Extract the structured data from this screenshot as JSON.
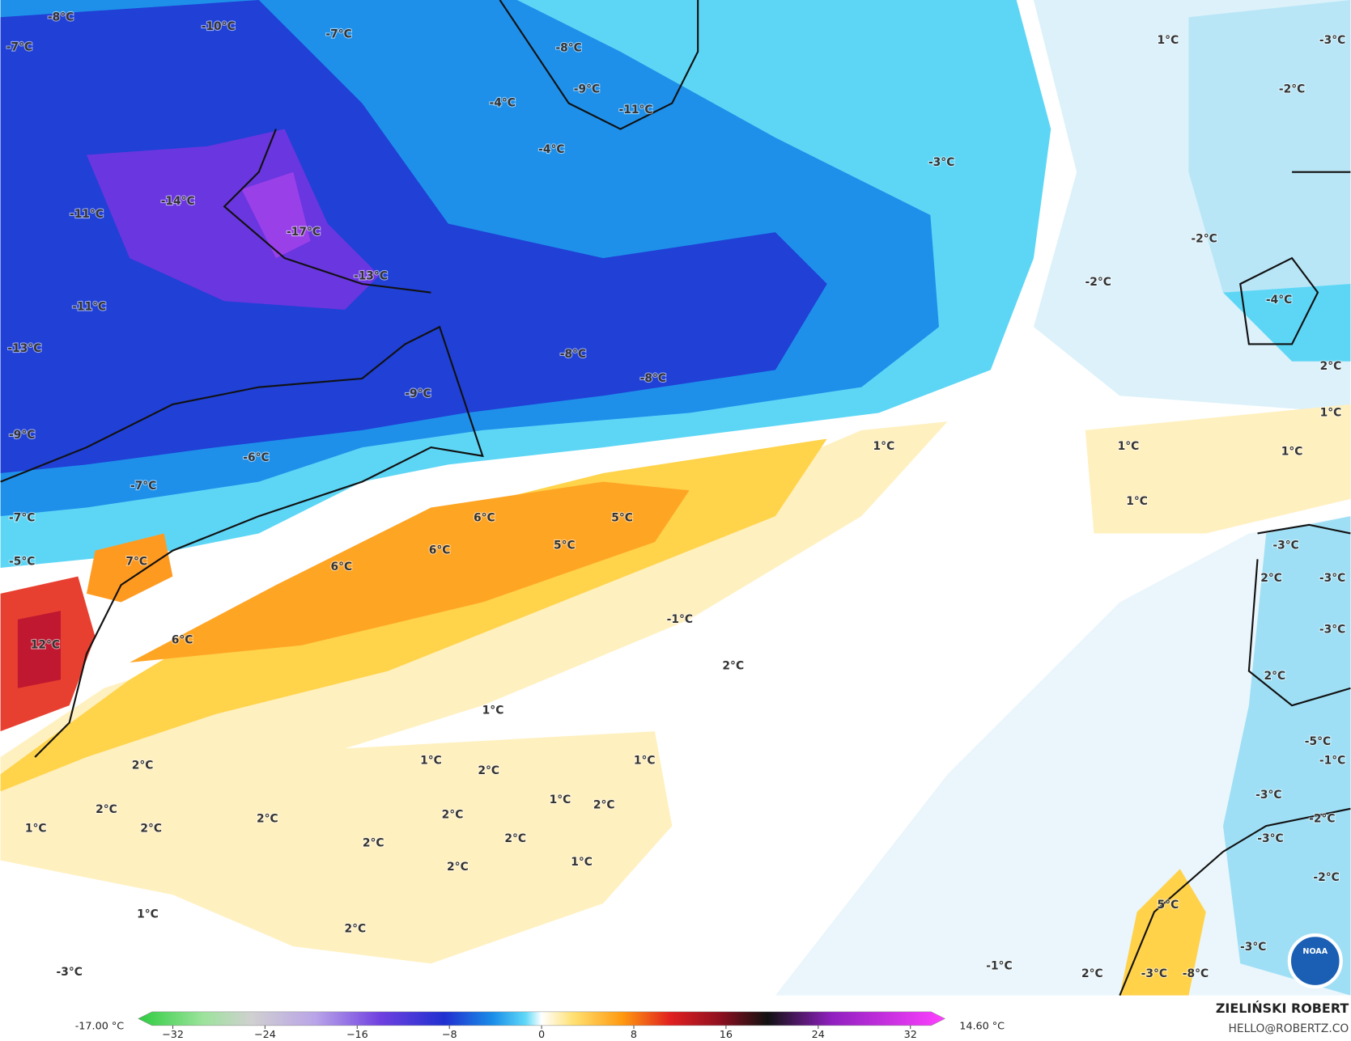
{
  "map": {
    "labels": [
      "-8°C",
      "-10°C",
      "-7°C",
      "-7°C",
      "-8°C",
      "-9°C",
      "-11°C",
      "-4°C",
      "-4°C",
      "-3°C",
      "1°C",
      "-3°C",
      "-2°C",
      "-14°C",
      "-11°C",
      "-17°C",
      "-2°C",
      "-13°C",
      "-2°C",
      "-11°C",
      "-4°C",
      "-13°C",
      "-8°C",
      "-8°C",
      "2°C",
      "-9°C",
      "1°C",
      "-9°C",
      "-6°C",
      "1°C",
      "1°C",
      "1°C",
      "-7°C",
      "1°C",
      "-7°C",
      "6°C",
      "5°C",
      "5°C",
      "6°C",
      "-5°C",
      "7°C",
      "6°C",
      "-3°C",
      "2°C",
      "-3°C",
      "-1°C",
      "-3°C",
      "12°C",
      "6°C",
      "2°C",
      "2°C",
      "1°C",
      "-5°C",
      "2°C",
      "1°C",
      "1°C",
      "-1°C",
      "2°C",
      "2°C",
      "1°C",
      "2°C",
      "-3°C",
      "2°C",
      "1°C",
      "2°C",
      "2°C",
      "-2°C",
      "2°C",
      "2°C",
      "-3°C",
      "2°C",
      "1°C",
      "-2°C",
      "5°C",
      "1°C",
      "2°C",
      "-3°C",
      "-3°C",
      "-1°C",
      "2°C",
      "-3°C",
      "-8°C"
    ],
    "logo": "NOAA"
  },
  "colorbar": {
    "min_label": "-17.00 °C",
    "max_label": "14.60 °C",
    "range": [
      -35,
      35
    ],
    "ticks": [
      {
        "value": -32,
        "label": "−32"
      },
      {
        "value": -24,
        "label": "−24"
      },
      {
        "value": -16,
        "label": "−16"
      },
      {
        "value": -8,
        "label": "−8"
      },
      0,
      8,
      16,
      24,
      32
    ]
  },
  "credit": {
    "name": "ZIELIŃSKI ROBERT",
    "email": "HELLO@ROBERTZ.CO"
  }
}
